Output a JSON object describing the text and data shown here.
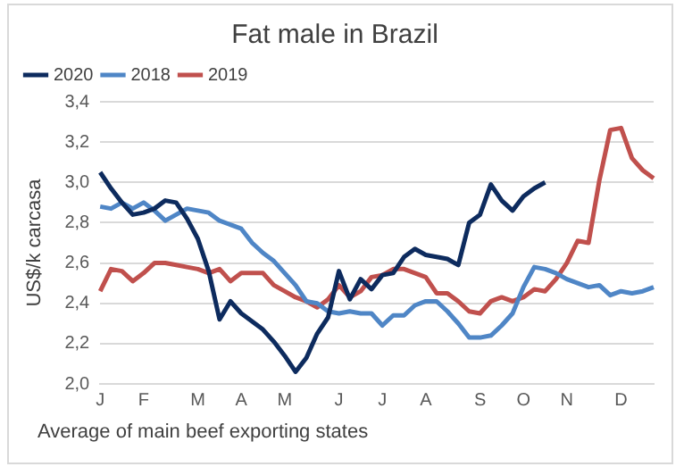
{
  "chart_data": {
    "type": "line",
    "title": "Fat male in Brazil",
    "ylabel": "US$/k carcasa",
    "annotations": [
      "Average of main beef exporting states"
    ],
    "categories": [
      "J",
      null,
      null,
      null,
      "F",
      null,
      null,
      null,
      null,
      "M",
      null,
      null,
      null,
      "A",
      null,
      null,
      null,
      "M",
      null,
      null,
      null,
      null,
      "J",
      null,
      null,
      null,
      "J",
      null,
      null,
      null,
      "A",
      null,
      null,
      null,
      null,
      "S",
      null,
      null,
      null,
      "O",
      null,
      null,
      null,
      "N",
      null,
      null,
      null,
      null,
      "D",
      null,
      null,
      null
    ],
    "ylim": [
      2.0,
      3.4
    ],
    "yticks": [
      {
        "value": 2.0,
        "label": "2,0"
      },
      {
        "value": 2.2,
        "label": "2,2"
      },
      {
        "value": 2.4,
        "label": "2,4"
      },
      {
        "value": 2.6,
        "label": "2,6"
      },
      {
        "value": 2.8,
        "label": "2,8"
      },
      {
        "value": 3.0,
        "label": "3,0"
      },
      {
        "value": 3.2,
        "label": "3,2"
      },
      {
        "value": 3.4,
        "label": "3,4"
      }
    ],
    "grid": "y",
    "legend": "top left",
    "marker": "none",
    "series": [
      {
        "name": "2020",
        "color": "#0d2b5e",
        "values": [
          3.05,
          2.97,
          2.9,
          2.84,
          2.85,
          2.87,
          2.91,
          2.9,
          2.82,
          2.72,
          2.56,
          2.32,
          2.41,
          2.35,
          2.31,
          2.27,
          2.21,
          2.14,
          2.06,
          2.13,
          2.25,
          2.33,
          2.56,
          2.42,
          2.52,
          2.47,
          2.54,
          2.55,
          2.63,
          2.67,
          2.64,
          2.63,
          2.62,
          2.59,
          2.8,
          2.84,
          2.99,
          2.91,
          2.86,
          2.93,
          2.97,
          3.0,
          null,
          null,
          null,
          null,
          null,
          null,
          null,
          null,
          null,
          null
        ]
      },
      {
        "name": "2018",
        "color": "#4f86c6",
        "values": [
          2.88,
          2.87,
          2.9,
          2.87,
          2.9,
          2.86,
          2.81,
          2.84,
          2.87,
          2.86,
          2.85,
          2.81,
          2.79,
          2.77,
          2.7,
          2.65,
          2.61,
          2.55,
          2.49,
          2.41,
          2.4,
          2.36,
          2.35,
          2.36,
          2.35,
          2.35,
          2.29,
          2.34,
          2.34,
          2.39,
          2.41,
          2.41,
          2.36,
          2.3,
          2.23,
          2.23,
          2.24,
          2.29,
          2.35,
          2.48,
          2.58,
          2.57,
          2.55,
          2.52,
          2.5,
          2.48,
          2.49,
          2.44,
          2.46,
          2.45,
          2.46,
          2.48
        ]
      },
      {
        "name": "2019",
        "color": "#c0504d",
        "values": [
          2.46,
          2.57,
          2.56,
          2.51,
          2.55,
          2.6,
          2.6,
          2.59,
          2.58,
          2.57,
          2.55,
          2.57,
          2.51,
          2.55,
          2.55,
          2.55,
          2.49,
          2.46,
          2.43,
          2.41,
          2.38,
          2.42,
          2.49,
          2.43,
          2.46,
          2.53,
          2.54,
          2.57,
          2.57,
          2.55,
          2.53,
          2.45,
          2.45,
          2.41,
          2.36,
          2.35,
          2.41,
          2.43,
          2.41,
          2.43,
          2.47,
          2.46,
          2.52,
          2.6,
          2.71,
          2.7,
          3.01,
          3.26,
          3.27,
          3.12,
          3.06,
          3.02
        ]
      }
    ]
  }
}
